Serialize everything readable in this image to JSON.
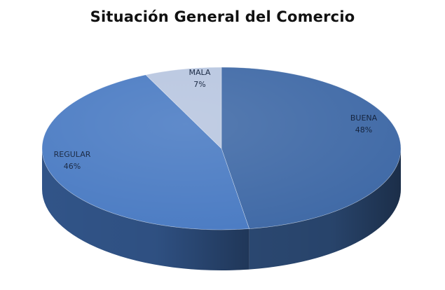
{
  "chart_data": {
    "type": "pie",
    "title": "Situación General del Comercio",
    "slices": [
      {
        "label": "BUENA",
        "value": 48,
        "value_label": "48%",
        "top_color": "#3F69A6",
        "side_color": "#2A4770",
        "text_color": "#15243e"
      },
      {
        "label": "REGULAR",
        "value": 46,
        "value_label": "46%",
        "top_color": "#4A7BC3",
        "side_color": "#315488",
        "text_color": "#1c2b45"
      },
      {
        "label": "MALA",
        "value": 7,
        "value_label": "7%",
        "top_color": "#B8C6E0",
        "side_color": "#7C8CA8",
        "text_color": "#1c2b45"
      }
    ]
  }
}
